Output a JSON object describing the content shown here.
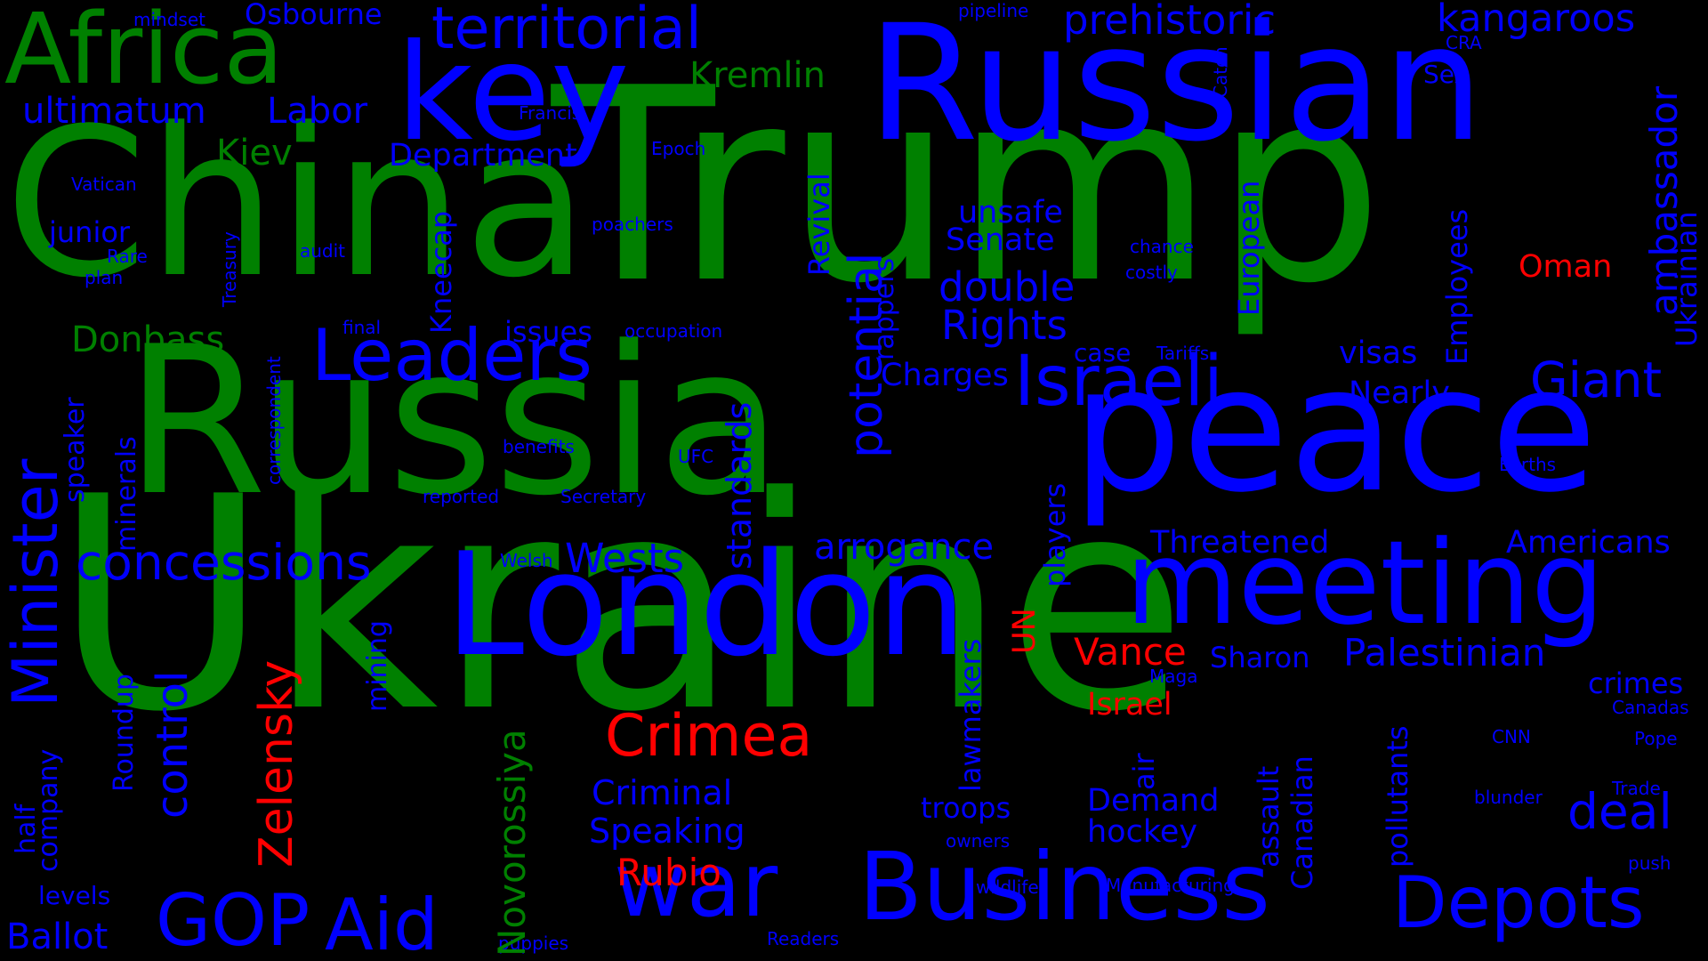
{
  "colors": {
    "background": "#000000",
    "green": "#008000",
    "blue": "#0000FF",
    "red": "#FF0000"
  },
  "words": [
    {
      "id": "ukraine",
      "text": "Ukraine",
      "color": "green"
    },
    {
      "id": "trump",
      "text": "Trump",
      "color": "green"
    },
    {
      "id": "russia",
      "text": "Russia",
      "color": "green"
    },
    {
      "id": "china",
      "text": "China",
      "color": "green"
    },
    {
      "id": "russian",
      "text": "Russian",
      "color": "blue"
    },
    {
      "id": "peace",
      "text": "peace",
      "color": "blue"
    },
    {
      "id": "london",
      "text": "London",
      "color": "blue"
    },
    {
      "id": "meeting",
      "text": "meeting",
      "color": "blue"
    },
    {
      "id": "key",
      "text": "key",
      "color": "blue"
    },
    {
      "id": "africa",
      "text": "Africa",
      "color": "green"
    },
    {
      "id": "business",
      "text": "Business",
      "color": "blue"
    },
    {
      "id": "war",
      "text": "war",
      "color": "blue"
    },
    {
      "id": "depots",
      "text": "Depots",
      "color": "blue"
    },
    {
      "id": "leaders",
      "text": "Leaders",
      "color": "blue"
    },
    {
      "id": "israeli",
      "text": "Israeli",
      "color": "blue"
    },
    {
      "id": "territorial",
      "text": "territorial",
      "color": "blue"
    },
    {
      "id": "minister",
      "text": "Minister",
      "color": "blue"
    },
    {
      "id": "gop",
      "text": "GOP",
      "color": "blue"
    },
    {
      "id": "aid",
      "text": "Aid",
      "color": "blue"
    },
    {
      "id": "giant",
      "text": "Giant",
      "color": "blue"
    },
    {
      "id": "concessions",
      "text": "concessions",
      "color": "blue"
    },
    {
      "id": "crimea",
      "text": "Crimea",
      "color": "red"
    },
    {
      "id": "zelensky",
      "text": "Zelensky",
      "color": "red"
    },
    {
      "id": "potential",
      "text": "potential",
      "color": "blue"
    },
    {
      "id": "deal",
      "text": "deal",
      "color": "blue"
    },
    {
      "id": "prehistoric",
      "text": "prehistoric",
      "color": "blue"
    },
    {
      "id": "kangaroos",
      "text": "kangaroos",
      "color": "blue"
    },
    {
      "id": "double",
      "text": "double",
      "color": "blue"
    },
    {
      "id": "rights",
      "text": "Rights",
      "color": "blue"
    },
    {
      "id": "control",
      "text": "control",
      "color": "blue"
    },
    {
      "id": "ambassador",
      "text": "ambassador",
      "color": "blue"
    },
    {
      "id": "novorossiya",
      "text": "Novorossiya",
      "color": "green"
    },
    {
      "id": "ultimatum",
      "text": "ultimatum",
      "color": "blue"
    },
    {
      "id": "labor",
      "text": "Labor",
      "color": "blue"
    },
    {
      "id": "kremlin",
      "text": "Kremlin",
      "color": "green"
    },
    {
      "id": "osbourne",
      "text": "Osbourne",
      "color": "blue"
    },
    {
      "id": "donbass",
      "text": "Donbass",
      "color": "green"
    },
    {
      "id": "kiev",
      "text": "Kiev",
      "color": "green"
    },
    {
      "id": "department",
      "text": "Department",
      "color": "blue"
    },
    {
      "id": "ballot",
      "text": "Ballot",
      "color": "blue"
    },
    {
      "id": "wests",
      "text": "Wests",
      "color": "blue"
    },
    {
      "id": "arrogance",
      "text": "arrogance",
      "color": "blue"
    },
    {
      "id": "standards",
      "text": "standards",
      "color": "blue"
    },
    {
      "id": "palestinian",
      "text": "Palestinian",
      "color": "blue"
    },
    {
      "id": "threatened",
      "text": "Threatened",
      "color": "blue"
    },
    {
      "id": "americans",
      "text": "Americans",
      "color": "blue"
    },
    {
      "id": "vance",
      "text": "Vance",
      "color": "red"
    },
    {
      "id": "rubio",
      "text": "Rubio",
      "color": "red"
    },
    {
      "id": "israel",
      "text": "Israel",
      "color": "red"
    },
    {
      "id": "oman",
      "text": "Oman",
      "color": "red"
    },
    {
      "id": "un",
      "text": "UN",
      "color": "red"
    },
    {
      "id": "criminal",
      "text": "Criminal",
      "color": "blue"
    },
    {
      "id": "speaking",
      "text": "Speaking",
      "color": "blue"
    },
    {
      "id": "charges",
      "text": "Charges",
      "color": "blue"
    },
    {
      "id": "senate",
      "text": "Senate",
      "color": "blue"
    },
    {
      "id": "unsafe",
      "text": "unsafe",
      "color": "blue"
    },
    {
      "id": "nearly",
      "text": "Nearly",
      "color": "blue"
    },
    {
      "id": "visas",
      "text": "visas",
      "color": "blue"
    },
    {
      "id": "sharon",
      "text": "Sharon",
      "color": "blue"
    },
    {
      "id": "demand",
      "text": "Demand",
      "color": "blue"
    },
    {
      "id": "hockey",
      "text": "hockey",
      "color": "blue"
    },
    {
      "id": "troops",
      "text": "troops",
      "color": "blue"
    },
    {
      "id": "crimes",
      "text": "crimes",
      "color": "blue"
    },
    {
      "id": "junior",
      "text": "junior",
      "color": "blue"
    },
    {
      "id": "issues",
      "text": "issues",
      "color": "blue"
    },
    {
      "id": "case",
      "text": "case",
      "color": "blue"
    },
    {
      "id": "sex",
      "text": "Sex",
      "color": "blue"
    },
    {
      "id": "levels",
      "text": "levels",
      "color": "blue"
    },
    {
      "id": "european",
      "text": "European",
      "color": "blue"
    },
    {
      "id": "employees",
      "text": "Employees",
      "color": "blue"
    },
    {
      "id": "ukrainian",
      "text": "Ukrainian",
      "color": "blue"
    },
    {
      "id": "revival",
      "text": "Revival",
      "color": "blue"
    },
    {
      "id": "rappers",
      "text": "rappers",
      "color": "blue"
    },
    {
      "id": "kneecap",
      "text": "Kneecap",
      "color": "blue"
    },
    {
      "id": "players",
      "text": "players",
      "color": "blue"
    },
    {
      "id": "lawmakers",
      "text": "lawmakers",
      "color": "blue"
    },
    {
      "id": "assault",
      "text": "assault",
      "color": "blue"
    },
    {
      "id": "canadian",
      "text": "Canadian",
      "color": "blue"
    },
    {
      "id": "pollutants",
      "text": "pollutants",
      "color": "blue"
    },
    {
      "id": "air",
      "text": "air",
      "color": "blue"
    },
    {
      "id": "roundup",
      "text": "Roundup",
      "color": "blue"
    },
    {
      "id": "minerals",
      "text": "minerals",
      "color": "blue"
    },
    {
      "id": "mining",
      "text": "mining",
      "color": "blue"
    },
    {
      "id": "speaker",
      "text": "speaker",
      "color": "blue"
    },
    {
      "id": "company",
      "text": "company",
      "color": "blue"
    },
    {
      "id": "half",
      "text": "half",
      "color": "blue"
    },
    {
      "id": "mindset",
      "text": "mindset",
      "color": "blue"
    },
    {
      "id": "pipeline",
      "text": "pipeline",
      "color": "blue"
    },
    {
      "id": "francis",
      "text": "Francis",
      "color": "blue"
    },
    {
      "id": "epoch",
      "text": "Epoch",
      "color": "blue"
    },
    {
      "id": "vatican",
      "text": "Vatican",
      "color": "blue"
    },
    {
      "id": "rare",
      "text": "Rare",
      "color": "blue"
    },
    {
      "id": "plan",
      "text": "plan",
      "color": "blue"
    },
    {
      "id": "audit",
      "text": "audit",
      "color": "blue"
    },
    {
      "id": "poachers",
      "text": "poachers",
      "color": "blue"
    },
    {
      "id": "treasury",
      "text": "Treasury",
      "color": "blue"
    },
    {
      "id": "final",
      "text": "final",
      "color": "blue"
    },
    {
      "id": "occupation",
      "text": "occupation",
      "color": "blue"
    },
    {
      "id": "benefits",
      "text": "benefits",
      "color": "blue"
    },
    {
      "id": "reported",
      "text": "reported",
      "color": "blue"
    },
    {
      "id": "secretary",
      "text": "Secretary",
      "color": "blue"
    },
    {
      "id": "ufc",
      "text": "UFC",
      "color": "blue"
    },
    {
      "id": "welsh",
      "text": "Welsh",
      "color": "blue"
    },
    {
      "id": "correspondent",
      "text": "correspondent",
      "color": "blue"
    },
    {
      "id": "chance",
      "text": "chance",
      "color": "blue"
    },
    {
      "id": "costly",
      "text": "costly",
      "color": "blue"
    },
    {
      "id": "tariffs",
      "text": "Tariffs",
      "color": "blue"
    },
    {
      "id": "catch",
      "text": "Catch",
      "color": "blue"
    },
    {
      "id": "cra",
      "text": "CRA",
      "color": "blue"
    },
    {
      "id": "earths",
      "text": "Earths",
      "color": "blue"
    },
    {
      "id": "maga",
      "text": "Maga",
      "color": "blue"
    },
    {
      "id": "cnn",
      "text": "CNN",
      "color": "blue"
    },
    {
      "id": "canadas",
      "text": "Canadas",
      "color": "blue"
    },
    {
      "id": "pope",
      "text": "Pope",
      "color": "blue"
    },
    {
      "id": "trade",
      "text": "Trade",
      "color": "blue"
    },
    {
      "id": "blunder",
      "text": "blunder",
      "color": "blue"
    },
    {
      "id": "push",
      "text": "push",
      "color": "blue"
    },
    {
      "id": "owners",
      "text": "owners",
      "color": "blue"
    },
    {
      "id": "wildlife",
      "text": "wildlife",
      "color": "blue"
    },
    {
      "id": "manufacturing",
      "text": "Manufacturing",
      "color": "blue"
    },
    {
      "id": "readers",
      "text": "Readers",
      "color": "blue"
    },
    {
      "id": "puppies",
      "text": "puppies",
      "color": "blue"
    }
  ]
}
